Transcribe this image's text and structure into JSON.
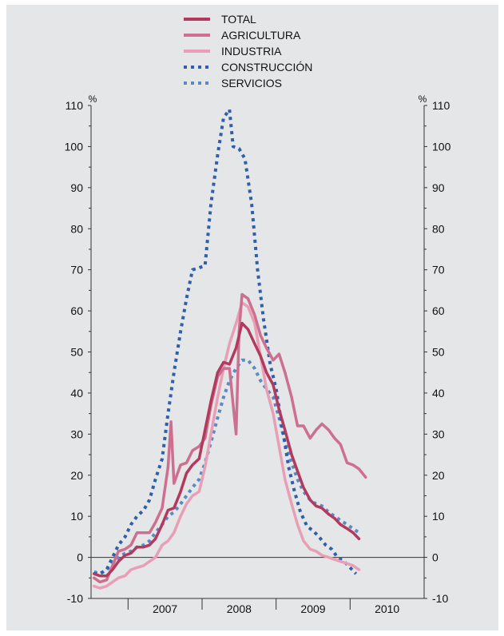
{
  "chart_data": {
    "type": "line",
    "title": "",
    "xlabel": "",
    "ylabel": "%",
    "y_unit_left": "%",
    "y_unit_right": "%",
    "ylim": [
      -10,
      110
    ],
    "yticks": [
      -10,
      0,
      10,
      20,
      30,
      40,
      50,
      60,
      70,
      80,
      90,
      100,
      110
    ],
    "year_labels": [
      "2007",
      "2008",
      "2009",
      "2010"
    ],
    "x_range": [
      2006.5,
      2011.0
    ],
    "grid": false,
    "zero_line": true,
    "legend_position": "top-center",
    "series": [
      {
        "name": "TOTAL",
        "color": "#b23a5e",
        "style": "solid",
        "points": [
          [
            2006.54,
            -4
          ],
          [
            2006.62,
            -4.5
          ],
          [
            2006.71,
            -4.5
          ],
          [
            2006.79,
            -3
          ],
          [
            2006.87,
            -1
          ],
          [
            2006.96,
            0.5
          ],
          [
            2007.04,
            1
          ],
          [
            2007.12,
            2.5
          ],
          [
            2007.21,
            2.5
          ],
          [
            2007.29,
            3
          ],
          [
            2007.37,
            4.5
          ],
          [
            2007.46,
            8
          ],
          [
            2007.54,
            11.5
          ],
          [
            2007.62,
            12
          ],
          [
            2007.71,
            16
          ],
          [
            2007.79,
            20.5
          ],
          [
            2007.87,
            22.5
          ],
          [
            2007.96,
            24
          ],
          [
            2008.04,
            31
          ],
          [
            2008.12,
            38
          ],
          [
            2008.21,
            45
          ],
          [
            2008.29,
            47.5
          ],
          [
            2008.37,
            47
          ],
          [
            2008.46,
            51
          ],
          [
            2008.54,
            57
          ],
          [
            2008.62,
            55.5
          ],
          [
            2008.71,
            52
          ],
          [
            2008.79,
            49
          ],
          [
            2008.87,
            45
          ],
          [
            2008.96,
            42
          ],
          [
            2009.04,
            36
          ],
          [
            2009.12,
            31
          ],
          [
            2009.21,
            25
          ],
          [
            2009.29,
            21
          ],
          [
            2009.37,
            17
          ],
          [
            2009.46,
            14
          ],
          [
            2009.54,
            12.5
          ],
          [
            2009.62,
            12
          ],
          [
            2009.71,
            10.5
          ],
          [
            2009.79,
            9.5
          ],
          [
            2009.87,
            8
          ],
          [
            2009.96,
            7
          ],
          [
            2010.04,
            6
          ],
          [
            2010.12,
            4.5
          ]
        ]
      },
      {
        "name": "AGRICULTURA",
        "color": "#cd6f8e",
        "style": "solid",
        "points": [
          [
            2006.54,
            -5
          ],
          [
            2006.62,
            -6
          ],
          [
            2006.71,
            -5.5
          ],
          [
            2006.79,
            -2
          ],
          [
            2006.87,
            1.5
          ],
          [
            2006.96,
            2
          ],
          [
            2007.04,
            3
          ],
          [
            2007.12,
            6
          ],
          [
            2007.21,
            6
          ],
          [
            2007.29,
            6
          ],
          [
            2007.37,
            8.5
          ],
          [
            2007.46,
            12
          ],
          [
            2007.54,
            22
          ],
          [
            2007.58,
            33
          ],
          [
            2007.62,
            18
          ],
          [
            2007.71,
            22.5
          ],
          [
            2007.79,
            23
          ],
          [
            2007.87,
            26
          ],
          [
            2007.96,
            27
          ],
          [
            2008.04,
            29
          ],
          [
            2008.12,
            37
          ],
          [
            2008.21,
            44
          ],
          [
            2008.29,
            46
          ],
          [
            2008.37,
            46
          ],
          [
            2008.46,
            30
          ],
          [
            2008.5,
            55
          ],
          [
            2008.54,
            64
          ],
          [
            2008.62,
            63
          ],
          [
            2008.71,
            59
          ],
          [
            2008.79,
            54
          ],
          [
            2008.87,
            51
          ],
          [
            2008.96,
            48
          ],
          [
            2009.04,
            49.5
          ],
          [
            2009.12,
            45
          ],
          [
            2009.21,
            39
          ],
          [
            2009.29,
            32
          ],
          [
            2009.37,
            32
          ],
          [
            2009.46,
            29
          ],
          [
            2009.54,
            31
          ],
          [
            2009.62,
            32.5
          ],
          [
            2009.71,
            31
          ],
          [
            2009.79,
            29
          ],
          [
            2009.87,
            27.5
          ],
          [
            2009.96,
            23
          ],
          [
            2010.04,
            22.5
          ],
          [
            2010.12,
            21.5
          ],
          [
            2010.21,
            19.5
          ]
        ]
      },
      {
        "name": "INDUSTRIA",
        "color": "#e89fb5",
        "style": "solid",
        "points": [
          [
            2006.54,
            -7
          ],
          [
            2006.62,
            -7.5
          ],
          [
            2006.71,
            -7
          ],
          [
            2006.79,
            -6
          ],
          [
            2006.87,
            -5
          ],
          [
            2006.96,
            -4.5
          ],
          [
            2007.04,
            -3
          ],
          [
            2007.12,
            -2.5
          ],
          [
            2007.21,
            -2
          ],
          [
            2007.29,
            -1
          ],
          [
            2007.37,
            0
          ],
          [
            2007.46,
            3
          ],
          [
            2007.54,
            4
          ],
          [
            2007.62,
            6
          ],
          [
            2007.71,
            10
          ],
          [
            2007.79,
            13
          ],
          [
            2007.87,
            15
          ],
          [
            2007.96,
            16
          ],
          [
            2008.04,
            22
          ],
          [
            2008.12,
            30
          ],
          [
            2008.21,
            39
          ],
          [
            2008.29,
            46
          ],
          [
            2008.37,
            52
          ],
          [
            2008.46,
            57
          ],
          [
            2008.54,
            62
          ],
          [
            2008.62,
            61
          ],
          [
            2008.71,
            57
          ],
          [
            2008.79,
            49
          ],
          [
            2008.87,
            41
          ],
          [
            2008.96,
            35
          ],
          [
            2009.04,
            27
          ],
          [
            2009.12,
            19
          ],
          [
            2009.21,
            13
          ],
          [
            2009.29,
            8
          ],
          [
            2009.37,
            4
          ],
          [
            2009.46,
            2
          ],
          [
            2009.54,
            1.5
          ],
          [
            2009.62,
            0.5
          ],
          [
            2009.71,
            0
          ],
          [
            2009.79,
            -0.5
          ],
          [
            2009.87,
            -1
          ],
          [
            2009.96,
            -1.5
          ],
          [
            2010.04,
            -2
          ],
          [
            2010.12,
            -3
          ]
        ]
      },
      {
        "name": "CONSTRUCCIÓN",
        "color": "#2f5fa8",
        "style": "dotted",
        "points": [
          [
            2006.54,
            -4
          ],
          [
            2006.62,
            -4
          ],
          [
            2006.71,
            -3
          ],
          [
            2006.79,
            0
          ],
          [
            2006.87,
            3
          ],
          [
            2006.96,
            5
          ],
          [
            2007.04,
            8
          ],
          [
            2007.12,
            10
          ],
          [
            2007.21,
            11.5
          ],
          [
            2007.29,
            14
          ],
          [
            2007.37,
            19
          ],
          [
            2007.46,
            24
          ],
          [
            2007.54,
            35
          ],
          [
            2007.62,
            45
          ],
          [
            2007.71,
            55
          ],
          [
            2007.79,
            63
          ],
          [
            2007.87,
            70
          ],
          [
            2007.96,
            70.5
          ],
          [
            2008.04,
            71
          ],
          [
            2008.12,
            86
          ],
          [
            2008.21,
            98
          ],
          [
            2008.29,
            107
          ],
          [
            2008.37,
            109
          ],
          [
            2008.42,
            100
          ],
          [
            2008.5,
            99.5
          ],
          [
            2008.58,
            97
          ],
          [
            2008.67,
            86
          ],
          [
            2008.75,
            70
          ],
          [
            2008.83,
            58
          ],
          [
            2008.92,
            47
          ],
          [
            2009.0,
            41
          ],
          [
            2009.08,
            32
          ],
          [
            2009.17,
            22
          ],
          [
            2009.25,
            16
          ],
          [
            2009.33,
            11
          ],
          [
            2009.42,
            7.5
          ],
          [
            2009.5,
            6.5
          ],
          [
            2009.58,
            5
          ],
          [
            2009.67,
            3
          ],
          [
            2009.75,
            2
          ],
          [
            2009.83,
            0
          ],
          [
            2009.92,
            -1
          ],
          [
            2010.0,
            -2.5
          ],
          [
            2010.08,
            -4
          ]
        ]
      },
      {
        "name": "SERVICIOS",
        "color": "#5b8ac2",
        "style": "dotted",
        "points": [
          [
            2006.54,
            -3.5
          ],
          [
            2006.62,
            -4
          ],
          [
            2006.71,
            -3
          ],
          [
            2006.79,
            -1.5
          ],
          [
            2006.87,
            0
          ],
          [
            2006.96,
            1
          ],
          [
            2007.04,
            1.5
          ],
          [
            2007.12,
            2.5
          ],
          [
            2007.21,
            3
          ],
          [
            2007.29,
            4
          ],
          [
            2007.37,
            6
          ],
          [
            2007.46,
            8
          ],
          [
            2007.54,
            10
          ],
          [
            2007.62,
            11
          ],
          [
            2007.71,
            13
          ],
          [
            2007.79,
            15
          ],
          [
            2007.87,
            17
          ],
          [
            2007.96,
            19
          ],
          [
            2008.04,
            23
          ],
          [
            2008.12,
            28
          ],
          [
            2008.21,
            34
          ],
          [
            2008.29,
            39
          ],
          [
            2008.37,
            43
          ],
          [
            2008.46,
            46
          ],
          [
            2008.54,
            48
          ],
          [
            2008.62,
            48
          ],
          [
            2008.71,
            46
          ],
          [
            2008.79,
            43
          ],
          [
            2008.87,
            41
          ],
          [
            2008.96,
            39
          ],
          [
            2009.04,
            34
          ],
          [
            2009.12,
            28
          ],
          [
            2009.21,
            23
          ],
          [
            2009.29,
            19
          ],
          [
            2009.37,
            16
          ],
          [
            2009.46,
            14
          ],
          [
            2009.54,
            13
          ],
          [
            2009.62,
            12.5
          ],
          [
            2009.71,
            11
          ],
          [
            2009.79,
            10
          ],
          [
            2009.87,
            9
          ],
          [
            2009.96,
            8
          ],
          [
            2010.04,
            7
          ],
          [
            2010.12,
            6
          ]
        ]
      }
    ]
  }
}
